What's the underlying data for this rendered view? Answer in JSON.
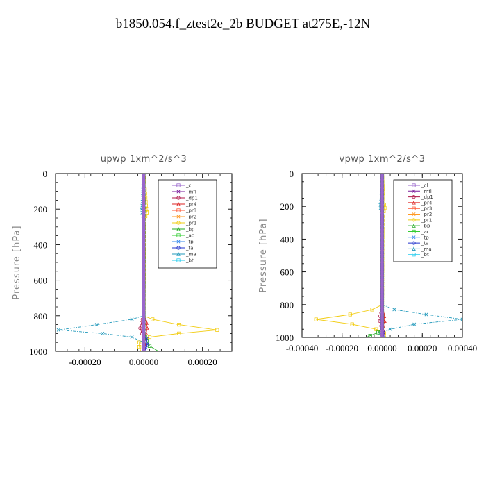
{
  "figure": {
    "title": "b1850.054.f_ztest2e_2b  BUDGET at275E,-12N"
  },
  "legend_entries": [
    {
      "name": "_cl",
      "color": "#9966cc"
    },
    {
      "name": "_mfl",
      "color": "#7a1a9a"
    },
    {
      "name": "_dp1",
      "color": "#b0174a"
    },
    {
      "name": "_pr4",
      "color": "#dd2222"
    },
    {
      "name": "_pr3",
      "color": "#ff5533"
    },
    {
      "name": "_pr2",
      "color": "#ff9922"
    },
    {
      "name": "_pr1",
      "color": "#f2cc10"
    },
    {
      "name": "_bp",
      "color": "#22aa22"
    },
    {
      "name": "_ac",
      "color": "#33cc33"
    },
    {
      "name": "_tp",
      "color": "#3388ee"
    },
    {
      "name": "_ta",
      "color": "#2233cc"
    },
    {
      "name": "_ma",
      "color": "#2299bb"
    },
    {
      "name": "_bt",
      "color": "#22ccee"
    }
  ],
  "chart_data": [
    {
      "type": "line",
      "title": "upwp   1xm^2/s^3",
      "ylabel": "Pressure [hPa]",
      "xlabel": "",
      "xlim": [
        -0.0003,
        0.0003
      ],
      "ylim": [
        1000,
        0
      ],
      "xticks": [
        -0.0002,
        0.0,
        0.0002
      ],
      "xtick_labels": [
        "-0.00020",
        "0.00000",
        "0.00020"
      ],
      "yticks": [
        0,
        200,
        400,
        600,
        800,
        1000
      ],
      "ytick_labels": [
        "0",
        "200",
        "400",
        "600",
        "800",
        "1000"
      ],
      "legend_position": "top-right",
      "series": [
        {
          "name": "_pr1",
          "y": [
            0,
            180,
            200,
            220,
            240,
            260,
            800,
            820,
            850,
            880,
            900,
            920,
            950,
            975,
            1000
          ],
          "x": [
            0,
            8e-06,
            1.2e-05,
            1e-05,
            6e-06,
            2e-06,
            0,
            3e-05,
            0.00012,
            0.00025,
            0.00012,
            2e-05,
            -1.5e-05,
            -1.5e-05,
            -1e-05
          ]
        },
        {
          "name": "_ma",
          "y": [
            0,
            180,
            200,
            220,
            240,
            260,
            800,
            820,
            850,
            880,
            900,
            920,
            950,
            975,
            1000
          ],
          "x": [
            0,
            -5e-06,
            -8e-06,
            -5e-06,
            -2e-06,
            0,
            0,
            -4e-05,
            -0.00016,
            -0.00029,
            -0.00014,
            -4e-05,
            0,
            0,
            0
          ]
        },
        {
          "name": "_dp1",
          "y": [
            0,
            800,
            840,
            870,
            900,
            930,
            960,
            1000
          ],
          "x": [
            0,
            0,
            -8e-06,
            -1.2e-05,
            -6e-06,
            4e-06,
            2e-06,
            0
          ]
        },
        {
          "name": "_pr4",
          "y": [
            0,
            800,
            840,
            870,
            900,
            930,
            960,
            1000
          ],
          "x": [
            0,
            0,
            1e-05,
            1.2e-05,
            8e-06,
            3e-06,
            2e-06,
            0
          ]
        },
        {
          "name": "_bp",
          "y": [
            0,
            900,
            940,
            970,
            1000
          ],
          "x": [
            0,
            0,
            1e-05,
            2e-05,
            5e-05
          ]
        },
        {
          "name": "_ta",
          "y": [
            0,
            900,
            930,
            960,
            1000
          ],
          "x": [
            0,
            0,
            1e-05,
            1.2e-05,
            4e-06
          ]
        },
        {
          "name": "_mfl",
          "y": [
            0,
            1000
          ],
          "x": [
            0,
            0
          ]
        },
        {
          "name": "_cl",
          "y": [
            0,
            1000
          ],
          "x": [
            0,
            0
          ]
        }
      ]
    },
    {
      "type": "line",
      "title": "vpwp   1xm^2/s^3",
      "ylabel": "Pressure [hPa]",
      "xlabel": "",
      "xlim": [
        -0.0004,
        0.0004
      ],
      "ylim": [
        1000,
        0
      ],
      "xticks": [
        -0.0004,
        -0.0002,
        0.0,
        0.0002,
        0.0004
      ],
      "xtick_labels": [
        "-0.00040",
        "-0.00020",
        "0.00000",
        "0.00020",
        "0.00040"
      ],
      "yticks": [
        0,
        200,
        400,
        600,
        800,
        1000
      ],
      "ytick_labels": [
        "0",
        "200",
        "400",
        "600",
        "800",
        "1000"
      ],
      "legend_position": "top-right",
      "series": [
        {
          "name": "_pr1",
          "y": [
            0,
            170,
            190,
            210,
            230,
            260,
            800,
            830,
            860,
            890,
            920,
            950,
            975,
            1000
          ],
          "x": [
            0,
            5e-06,
            1e-05,
            1.2e-05,
            8e-06,
            2e-06,
            0,
            -5e-05,
            -0.00016,
            -0.00033,
            -0.00015,
            -3e-05,
            1e-05,
            2e-05
          ]
        },
        {
          "name": "_ma",
          "y": [
            0,
            170,
            190,
            210,
            230,
            260,
            800,
            830,
            860,
            890,
            920,
            950,
            975,
            1000
          ],
          "x": [
            0,
            -6e-06,
            -1e-05,
            -8e-06,
            -4e-06,
            0,
            0,
            6e-05,
            0.00022,
            0.0004,
            0.00016,
            4e-05,
            -1e-05,
            -1e-05
          ]
        },
        {
          "name": "_dp1",
          "y": [
            0,
            830,
            870,
            900,
            930,
            960,
            1000
          ],
          "x": [
            0,
            0,
            -1e-05,
            -1.2e-05,
            -5e-06,
            3e-06,
            0
          ]
        },
        {
          "name": "_pr4",
          "y": [
            0,
            830,
            870,
            900,
            930,
            960,
            1000
          ],
          "x": [
            0,
            0,
            1e-05,
            1.2e-05,
            6e-06,
            2e-06,
            0
          ]
        },
        {
          "name": "_bp",
          "y": [
            0,
            940,
            970,
            990,
            1000
          ],
          "x": [
            0,
            0,
            -2e-05,
            -6e-05,
            -8e-05
          ]
        },
        {
          "name": "_ta",
          "y": [
            0,
            940,
            970,
            1000
          ],
          "x": [
            0,
            0,
            6e-06,
            1e-05
          ]
        },
        {
          "name": "_mfl",
          "y": [
            0,
            1000
          ],
          "x": [
            0,
            0
          ]
        },
        {
          "name": "_cl",
          "y": [
            0,
            1000
          ],
          "x": [
            0,
            0
          ]
        }
      ]
    }
  ]
}
